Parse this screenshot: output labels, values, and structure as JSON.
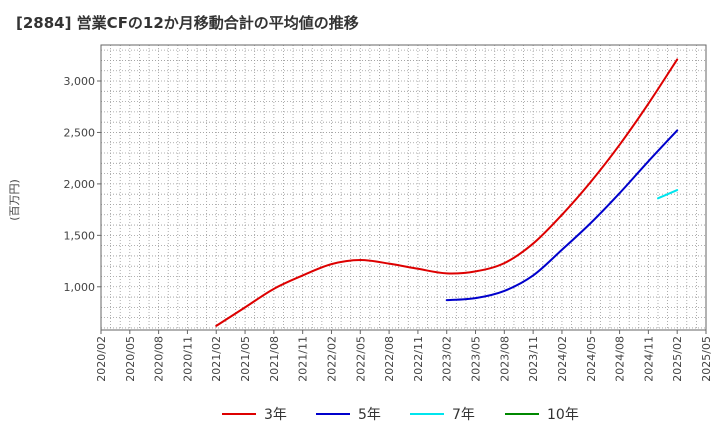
{
  "chart_data": {
    "type": "line",
    "title": "[2884]  営業CFの12か月移動合計の平均値の推移",
    "ylabel": "(百万円)",
    "xlabel": "",
    "ylim": [
      580,
      3350
    ],
    "yticks": [
      1000,
      1500,
      2000,
      2500,
      3000
    ],
    "ytick_labels": [
      "1,000",
      "1,500",
      "2,000",
      "2,500",
      "3,000"
    ],
    "xticks": [
      "2020/02",
      "2020/05",
      "2020/08",
      "2020/11",
      "2021/02",
      "2021/05",
      "2021/08",
      "2021/11",
      "2022/02",
      "2022/05",
      "2022/08",
      "2022/11",
      "2023/02",
      "2023/05",
      "2023/08",
      "2023/11",
      "2024/02",
      "2024/05",
      "2024/08",
      "2024/11",
      "2025/02",
      "2025/05"
    ],
    "grid": true,
    "legend_position": "bottom",
    "series": [
      {
        "name": "3年",
        "color": "#dd0000",
        "x": [
          "2021/02",
          "2021/05",
          "2021/08",
          "2021/11",
          "2022/02",
          "2022/05",
          "2022/08",
          "2022/11",
          "2023/02",
          "2023/05",
          "2023/08",
          "2023/11",
          "2024/02",
          "2024/05",
          "2024/08",
          "2024/11",
          "2025/02"
        ],
        "values": [
          620,
          800,
          980,
          1110,
          1220,
          1260,
          1225,
          1175,
          1130,
          1150,
          1230,
          1420,
          1700,
          2020,
          2380,
          2780,
          3210
        ]
      },
      {
        "name": "5年",
        "color": "#0000cc",
        "x": [
          "2023/02",
          "2023/05",
          "2023/08",
          "2023/11",
          "2024/02",
          "2024/05",
          "2024/08",
          "2024/11",
          "2025/02"
        ],
        "values": [
          870,
          890,
          960,
          1110,
          1360,
          1620,
          1910,
          2220,
          2520
        ]
      },
      {
        "name": "7年",
        "color": "#00e5ee",
        "x": [
          "2024/12",
          "2025/02"
        ],
        "values": [
          1860,
          1940
        ]
      },
      {
        "name": "10年",
        "color": "#008800",
        "x": [],
        "values": []
      }
    ]
  }
}
